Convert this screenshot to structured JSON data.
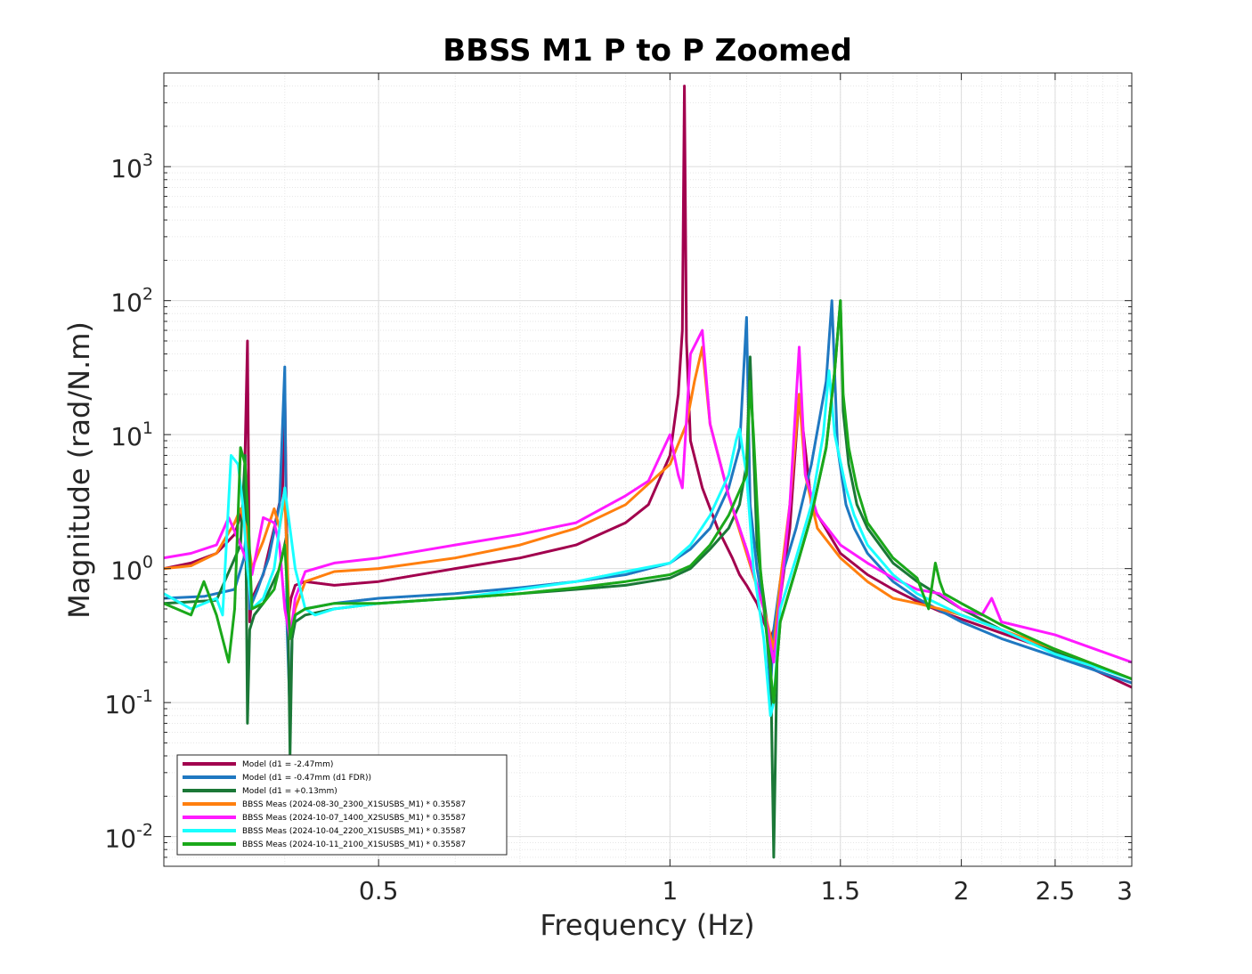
{
  "chart_data": {
    "type": "line",
    "title": "BBSS M1 P to P Zoomed",
    "xlabel": "Frequency (Hz)",
    "ylabel": "Magnitude (rad/N.m)",
    "xscale": "log",
    "yscale": "log",
    "xlim": [
      0.3,
      3
    ],
    "ylim": [
      0.006,
      5000
    ],
    "xticks": [
      {
        "value": 0.5,
        "label": "0.5"
      },
      {
        "value": 1,
        "label": "1"
      },
      {
        "value": 1.5,
        "label": "1.5"
      },
      {
        "value": 2,
        "label": "2"
      },
      {
        "value": 2.5,
        "label": "2.5"
      },
      {
        "value": 3,
        "label": "3"
      }
    ],
    "yticks": [
      {
        "value": 0.01,
        "base": "10",
        "exp": "-2"
      },
      {
        "value": 0.1,
        "base": "10",
        "exp": "-1"
      },
      {
        "value": 1,
        "base": "10",
        "exp": "0"
      },
      {
        "value": 10,
        "base": "10",
        "exp": "1"
      },
      {
        "value": 100,
        "base": "10",
        "exp": "2"
      },
      {
        "value": 1000,
        "base": "10",
        "exp": "3"
      }
    ],
    "grid": true,
    "legend_position": "bottom-left",
    "series": [
      {
        "name": "Model (d1 = -2.47mm)",
        "color": "#a2004e",
        "width": 3,
        "x": [
          0.3,
          0.32,
          0.34,
          0.355,
          0.363,
          0.366,
          0.368,
          0.37,
          0.38,
          0.39,
          0.398,
          0.4,
          0.403,
          0.406,
          0.41,
          0.42,
          0.45,
          0.5,
          0.6,
          0.7,
          0.8,
          0.9,
          0.95,
          1.0,
          1.02,
          1.03,
          1.035,
          1.04,
          1.05,
          1.08,
          1.12,
          1.16,
          1.18,
          1.2,
          1.23,
          1.25,
          1.27,
          1.28,
          1.3,
          1.33,
          1.36,
          1.4,
          1.5,
          1.6,
          1.7,
          1.8,
          1.9,
          2.0,
          2.2,
          2.5,
          3.0
        ],
        "y": [
          1.0,
          1.1,
          1.3,
          1.8,
          3.0,
          50,
          0.4,
          0.6,
          0.9,
          2.0,
          4.0,
          23,
          0.4,
          0.6,
          0.75,
          0.8,
          0.75,
          0.8,
          1.0,
          1.2,
          1.5,
          2.2,
          3.0,
          7.0,
          20,
          60,
          4000,
          50,
          9.0,
          4.0,
          2.0,
          1.2,
          0.9,
          0.75,
          0.55,
          0.4,
          0.3,
          0.35,
          0.6,
          2.0,
          20,
          3.0,
          1.3,
          0.9,
          0.7,
          0.57,
          0.48,
          0.42,
          0.33,
          0.24,
          0.13
        ]
      },
      {
        "name": "Model (d1 = -0.47mm (d1 FDR))",
        "color": "#1f78c1",
        "width": 3,
        "x": [
          0.3,
          0.33,
          0.355,
          0.363,
          0.366,
          0.368,
          0.375,
          0.385,
          0.395,
          0.4,
          0.402,
          0.405,
          0.407,
          0.41,
          0.42,
          0.45,
          0.5,
          0.6,
          0.7,
          0.8,
          0.9,
          1.0,
          1.05,
          1.1,
          1.15,
          1.18,
          1.2,
          1.21,
          1.23,
          1.25,
          1.26,
          1.27,
          1.28,
          1.3,
          1.35,
          1.4,
          1.45,
          1.47,
          1.49,
          1.52,
          1.55,
          1.6,
          1.7,
          1.8,
          2.0,
          2.2,
          2.5,
          3.0
        ],
        "y": [
          0.6,
          0.62,
          0.7,
          1.2,
          2.5,
          0.5,
          0.7,
          1.2,
          3.0,
          32,
          0.4,
          0.08,
          0.3,
          0.45,
          0.5,
          0.55,
          0.6,
          0.65,
          0.72,
          0.8,
          0.9,
          1.1,
          1.4,
          2.0,
          4.0,
          8.0,
          75,
          3.0,
          1.0,
          0.5,
          0.3,
          0.12,
          0.35,
          0.8,
          2.0,
          6.0,
          25,
          100,
          8.0,
          3.0,
          2.0,
          1.3,
          0.8,
          0.6,
          0.4,
          0.3,
          0.22,
          0.14
        ]
      },
      {
        "name": "Model (d1 = +0.13mm)",
        "color": "#1b7837",
        "width": 3,
        "x": [
          0.3,
          0.34,
          0.36,
          0.364,
          0.366,
          0.368,
          0.372,
          0.38,
          0.395,
          0.402,
          0.405,
          0.407,
          0.41,
          0.42,
          0.45,
          0.5,
          0.6,
          0.7,
          0.8,
          0.9,
          1.0,
          1.05,
          1.1,
          1.15,
          1.18,
          1.2,
          1.21,
          1.22,
          1.23,
          1.25,
          1.27,
          1.28,
          1.29,
          1.3,
          1.35,
          1.4,
          1.45,
          1.48,
          1.5,
          1.51,
          1.53,
          1.56,
          1.6,
          1.7,
          1.8,
          2.0,
          2.2,
          2.5,
          3.0
        ],
        "y": [
          0.55,
          0.58,
          1.5,
          7.0,
          0.07,
          0.35,
          0.45,
          0.55,
          1.0,
          1.8,
          0.04,
          0.3,
          0.4,
          0.45,
          0.5,
          0.55,
          0.6,
          0.65,
          0.7,
          0.75,
          0.85,
          1.0,
          1.4,
          2.0,
          3.0,
          6.0,
          38,
          8.0,
          1.5,
          0.6,
          0.25,
          0.007,
          0.2,
          0.4,
          1.0,
          2.5,
          8.0,
          30,
          100,
          15,
          6.0,
          3.0,
          2.0,
          1.1,
          0.8,
          0.5,
          0.35,
          0.24,
          0.15
        ]
      },
      {
        "name": "BBSS Meas (2024-08-30_2300_X1SUSBS_M1) * 0.35587",
        "color": "#ff7f0e",
        "width": 3,
        "x": [
          0.3,
          0.32,
          0.34,
          0.355,
          0.36,
          0.365,
          0.37,
          0.38,
          0.39,
          0.395,
          0.4,
          0.405,
          0.41,
          0.42,
          0.45,
          0.5,
          0.6,
          0.7,
          0.8,
          0.9,
          1.0,
          1.04,
          1.06,
          1.08,
          1.1,
          1.15,
          1.2,
          1.25,
          1.28,
          1.3,
          1.33,
          1.36,
          1.38,
          1.42,
          1.5,
          1.6,
          1.7,
          1.8,
          1.9,
          2.0,
          2.2,
          2.5,
          3.0
        ],
        "y": [
          1.0,
          1.05,
          1.3,
          2.2,
          2.8,
          2.0,
          1.0,
          1.6,
          2.8,
          2.0,
          3.5,
          0.3,
          0.5,
          0.8,
          0.95,
          1.0,
          1.2,
          1.5,
          2.0,
          3.0,
          6.0,
          12,
          25,
          45,
          12,
          3.5,
          1.3,
          0.5,
          0.25,
          0.8,
          3.0,
          20,
          5.0,
          2.0,
          1.2,
          0.8,
          0.6,
          0.55,
          0.5,
          0.45,
          0.35,
          0.25,
          0.15
        ]
      },
      {
        "name": "BBSS Meas (2024-10-07_1400_X2SUSBS_M1) * 0.35587",
        "color": "#ff1aff",
        "width": 3,
        "x": [
          0.3,
          0.32,
          0.34,
          0.35,
          0.36,
          0.37,
          0.38,
          0.39,
          0.395,
          0.4,
          0.405,
          0.41,
          0.42,
          0.45,
          0.5,
          0.6,
          0.7,
          0.8,
          0.9,
          0.95,
          1.0,
          1.02,
          1.03,
          1.05,
          1.08,
          1.1,
          1.15,
          1.2,
          1.25,
          1.28,
          1.3,
          1.33,
          1.36,
          1.38,
          1.42,
          1.5,
          1.6,
          1.7,
          1.8,
          1.9,
          2.0,
          2.1,
          2.15,
          2.2,
          2.5,
          3.0
        ],
        "y": [
          1.2,
          1.3,
          1.5,
          2.4,
          1.5,
          0.9,
          2.4,
          2.2,
          1.5,
          0.5,
          0.3,
          0.6,
          0.95,
          1.1,
          1.2,
          1.5,
          1.8,
          2.2,
          3.5,
          4.5,
          10,
          5.0,
          4.0,
          40,
          60,
          12,
          3.5,
          1.4,
          0.5,
          0.2,
          0.6,
          3.0,
          45,
          5.0,
          2.5,
          1.5,
          1.1,
          0.85,
          0.7,
          0.65,
          0.5,
          0.45,
          0.6,
          0.4,
          0.32,
          0.2
        ]
      },
      {
        "name": "BBSS Meas (2024-10-04_2200_X1SUSBS_M1) * 0.35587",
        "color": "#19ffff",
        "width": 3,
        "x": [
          0.3,
          0.32,
          0.34,
          0.345,
          0.352,
          0.358,
          0.362,
          0.366,
          0.37,
          0.38,
          0.39,
          0.4,
          0.41,
          0.42,
          0.43,
          0.45,
          0.5,
          0.6,
          0.7,
          0.8,
          0.9,
          1.0,
          1.05,
          1.1,
          1.15,
          1.17,
          1.18,
          1.2,
          1.22,
          1.25,
          1.27,
          1.28,
          1.3,
          1.35,
          1.4,
          1.44,
          1.46,
          1.48,
          1.52,
          1.55,
          1.6,
          1.7,
          1.8,
          2.0,
          2.2,
          2.5,
          3.0
        ],
        "y": [
          0.65,
          0.5,
          0.6,
          0.45,
          7.0,
          6.0,
          3.0,
          1.0,
          0.5,
          0.6,
          1.0,
          4.0,
          1.0,
          0.5,
          0.45,
          0.5,
          0.55,
          0.6,
          0.7,
          0.8,
          0.95,
          1.1,
          1.5,
          2.5,
          5.0,
          9.0,
          11,
          5.0,
          1.0,
          0.3,
          0.08,
          0.1,
          0.5,
          1.2,
          3.0,
          10,
          30,
          10,
          4.0,
          2.5,
          1.5,
          0.9,
          0.65,
          0.45,
          0.35,
          0.23,
          0.15
        ]
      },
      {
        "name": "BBSS Meas (2024-10-11_2100_X1SUSBS_M1) * 0.35587",
        "color": "#1aa81a",
        "width": 3,
        "x": [
          0.3,
          0.32,
          0.33,
          0.34,
          0.35,
          0.355,
          0.36,
          0.364,
          0.367,
          0.37,
          0.38,
          0.39,
          0.4,
          0.405,
          0.41,
          0.42,
          0.45,
          0.5,
          0.6,
          0.7,
          0.8,
          0.9,
          1.0,
          1.05,
          1.1,
          1.15,
          1.2,
          1.21,
          1.22,
          1.24,
          1.26,
          1.28,
          1.3,
          1.35,
          1.4,
          1.45,
          1.48,
          1.5,
          1.51,
          1.53,
          1.56,
          1.6,
          1.7,
          1.8,
          1.85,
          1.88,
          1.9,
          1.92,
          2.0,
          2.2,
          2.5,
          3.0
        ],
        "y": [
          0.55,
          0.45,
          0.8,
          0.45,
          0.2,
          0.5,
          8.0,
          6.0,
          2.0,
          0.5,
          0.55,
          0.7,
          1.5,
          0.3,
          0.45,
          0.5,
          0.55,
          0.55,
          0.6,
          0.65,
          0.72,
          0.8,
          0.9,
          1.05,
          1.5,
          2.5,
          5.0,
          25,
          10,
          1.0,
          0.3,
          0.1,
          0.4,
          1.0,
          2.5,
          8.0,
          30,
          100,
          20,
          8.0,
          4.0,
          2.2,
          1.2,
          0.85,
          0.5,
          1.1,
          0.8,
          0.65,
          0.55,
          0.38,
          0.25,
          0.15
        ]
      }
    ]
  }
}
